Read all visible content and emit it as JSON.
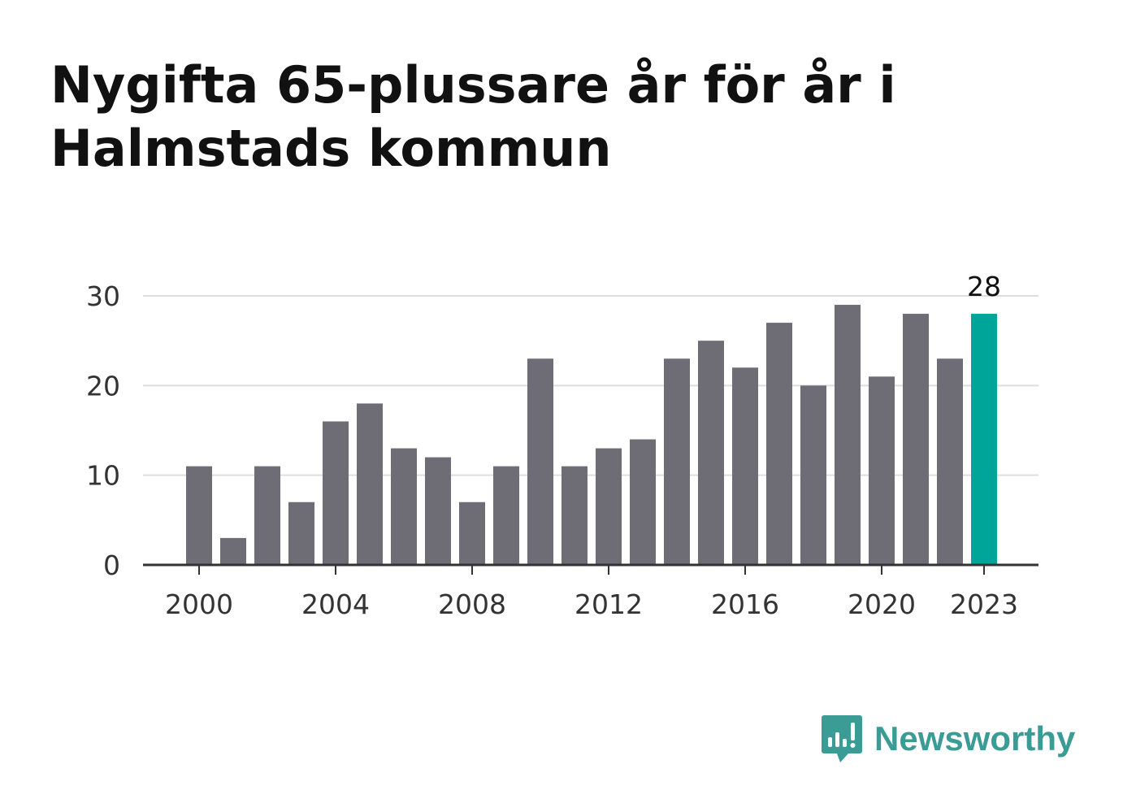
{
  "header": {
    "title": "Nygifta 65-plussare år för år i Halmstads kommun"
  },
  "brand": {
    "name": "Newsworthy",
    "icon": "newsworthy-logo-icon",
    "color": "#3a9c95"
  },
  "chart_data": {
    "type": "bar",
    "title": "Nygifta 65-plussare år för år i Halmstads kommun",
    "xlabel": "",
    "ylabel": "",
    "categories": [
      "2000",
      "2001",
      "2002",
      "2003",
      "2004",
      "2005",
      "2006",
      "2007",
      "2008",
      "2009",
      "2010",
      "2011",
      "2012",
      "2013",
      "2014",
      "2015",
      "2016",
      "2017",
      "2018",
      "2019",
      "2020",
      "2021",
      "2022",
      "2023"
    ],
    "values": [
      11,
      3,
      11,
      7,
      16,
      18,
      13,
      12,
      7,
      11,
      23,
      11,
      13,
      14,
      23,
      25,
      22,
      27,
      20,
      29,
      21,
      28,
      23,
      28
    ],
    "ylim": [
      0,
      30
    ],
    "yticks": [
      "0",
      "10",
      "20",
      "30"
    ],
    "xticks": [
      "2000",
      "2004",
      "2008",
      "2012",
      "2016",
      "2020",
      "2023"
    ],
    "highlight_label": "28",
    "grid": true,
    "colors": {
      "bar": "#6e6d75",
      "highlight": "#00a59a",
      "grid": "#dddddd",
      "axis": "#333333"
    }
  }
}
